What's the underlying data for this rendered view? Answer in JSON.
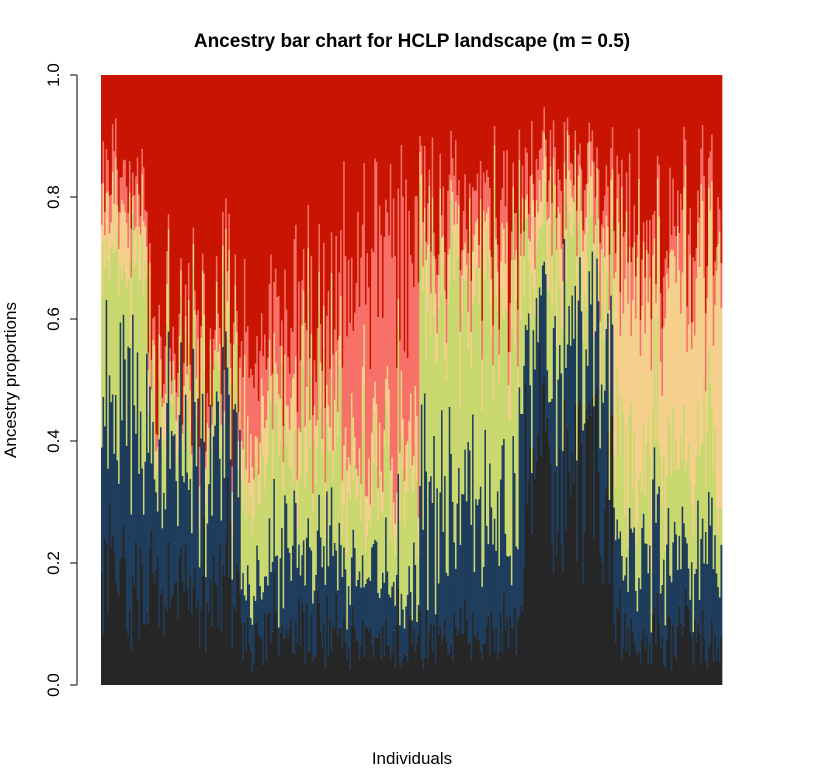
{
  "chart_data": {
    "type": "bar",
    "subtype": "stacked-100",
    "title": "Ancestry bar chart for HCLP landscape (m = 0.5)",
    "xlabel": "Individuals",
    "ylabel": "Ancestry proportions",
    "ylim": [
      0,
      1
    ],
    "y_ticks": [
      "0.0",
      "0.2",
      "0.4",
      "0.6",
      "0.8",
      "1.0"
    ],
    "grid": false,
    "legend": "none",
    "n_individuals": 400,
    "series": [
      {
        "color": "#262626"
      },
      {
        "color": "#1f3d5c"
      },
      {
        "color": "#c9d86f"
      },
      {
        "color": "#f5d08c"
      },
      {
        "color": "#f87169"
      },
      {
        "color": "#c81400"
      }
    ],
    "group_profiles": [
      {
        "from": 0,
        "to": 30,
        "mean_proportions": [
          0.17,
          0.3,
          0.23,
          0.08,
          0.06,
          0.16
        ]
      },
      {
        "from": 30,
        "to": 90,
        "mean_proportions": [
          0.15,
          0.22,
          0.09,
          0.05,
          0.04,
          0.45
        ]
      },
      {
        "from": 90,
        "to": 155,
        "mean_proportions": [
          0.08,
          0.12,
          0.18,
          0.08,
          0.12,
          0.42
        ]
      },
      {
        "from": 155,
        "to": 205,
        "mean_proportions": [
          0.07,
          0.1,
          0.16,
          0.07,
          0.3,
          0.3
        ]
      },
      {
        "from": 205,
        "to": 272,
        "mean_proportions": [
          0.08,
          0.22,
          0.34,
          0.08,
          0.06,
          0.22
        ]
      },
      {
        "from": 272,
        "to": 330,
        "mean_proportions": [
          0.36,
          0.2,
          0.15,
          0.08,
          0.06,
          0.15
        ]
      },
      {
        "from": 330,
        "to": 400,
        "mean_proportions": [
          0.08,
          0.14,
          0.16,
          0.3,
          0.08,
          0.24
        ]
      }
    ]
  }
}
